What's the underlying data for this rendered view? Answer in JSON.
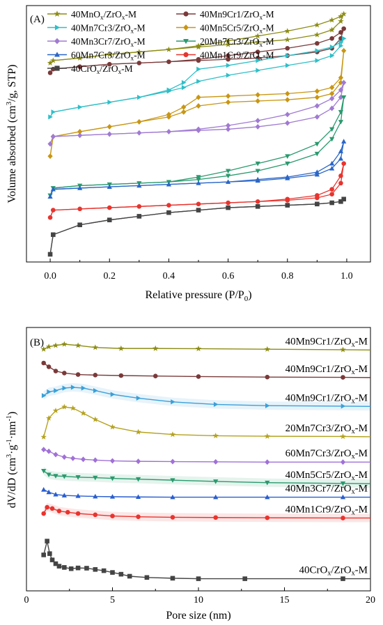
{
  "chart_data": [
    {
      "type": "line",
      "panel_label": "(A)",
      "xlabel": "Relative pressure (P/P",
      "xlabel_sub": "0",
      "xlabel_end": ")",
      "ylabel": "Volume absorbed (cm",
      "ylabel_sup": "3",
      "ylabel_end": "/g, STP)",
      "xlim": [
        -0.08,
        1.08
      ],
      "ylim": [
        0,
        1
      ],
      "x_ticks": [
        "0.0",
        "0.2",
        "0.4",
        "0.6",
        "0.8",
        "1.0"
      ],
      "x_tick_values": [
        0,
        0.2,
        0.4,
        0.6,
        0.8,
        1.0
      ],
      "y_ticks_labeled": false,
      "legend_columns": 2,
      "legend_placement": "top-left",
      "series": [
        {
          "name": "40MnOx/ZrOx-M",
          "legend_text": [
            "40MnO",
            "x",
            "/ZrO",
            "x",
            "-M"
          ],
          "color": "#8c8c14",
          "marker": "star",
          "x": [
            0,
            0.01,
            0.1,
            0.2,
            0.3,
            0.4,
            0.5,
            0.6,
            0.7,
            0.8,
            0.9,
            0.95,
            0.98,
            0.99
          ],
          "y_ads": [
            0.8,
            0.81,
            0.82,
            0.835,
            0.845,
            0.855,
            0.865,
            0.875,
            0.885,
            0.895,
            0.915,
            0.935,
            0.97,
            1.0
          ],
          "y_des": [
            0.8,
            0.81,
            0.82,
            0.835,
            0.845,
            0.855,
            0.87,
            0.89,
            0.91,
            0.93,
            0.955,
            0.975,
            0.99,
            1.0
          ]
        },
        {
          "name": "40Mn9Cr1/ZrOx-M",
          "legend_text": [
            "40Mn9Cr1/ZrO",
            "x",
            "-M"
          ],
          "color": "#7a3a3a",
          "marker": "circle",
          "x": [
            0,
            0.01,
            0.1,
            0.2,
            0.3,
            0.4,
            0.5,
            0.6,
            0.7,
            0.8,
            0.9,
            0.95,
            0.98,
            0.99
          ],
          "y_ads": [
            0.76,
            0.775,
            0.785,
            0.795,
            0.8,
            0.805,
            0.81,
            0.815,
            0.82,
            0.83,
            0.845,
            0.86,
            0.9,
            0.94
          ],
          "y_des": [
            0.76,
            0.775,
            0.785,
            0.795,
            0.8,
            0.805,
            0.815,
            0.83,
            0.845,
            0.86,
            0.88,
            0.9,
            0.925,
            0.94
          ]
        },
        {
          "name": "40Mn7Cr3/ZrOx-M",
          "legend_text": [
            "40Mn7Cr3/ZrO",
            "x",
            "-M"
          ],
          "color": "#2fbfc8",
          "marker": "triangle-right",
          "x": [
            0,
            0.01,
            0.1,
            0.2,
            0.3,
            0.4,
            0.45,
            0.5,
            0.6,
            0.7,
            0.8,
            0.9,
            0.95,
            0.98,
            0.99
          ],
          "y_ads": [
            0.58,
            0.6,
            0.62,
            0.64,
            0.66,
            0.685,
            0.7,
            0.725,
            0.75,
            0.77,
            0.79,
            0.81,
            0.83,
            0.87,
            0.9
          ],
          "y_des": [
            0.58,
            0.6,
            0.62,
            0.64,
            0.66,
            0.69,
            0.72,
            0.775,
            0.79,
            0.81,
            0.83,
            0.85,
            0.865,
            0.885,
            0.9
          ]
        },
        {
          "name": "40Mn5Cr5/ZrOx-M",
          "legend_text": [
            "40Mn5Cr5/ZrO",
            "x",
            "-M"
          ],
          "color": "#c89614",
          "marker": "diamond",
          "x": [
            0,
            0.01,
            0.1,
            0.2,
            0.3,
            0.4,
            0.45,
            0.5,
            0.6,
            0.7,
            0.8,
            0.9,
            0.95,
            0.98,
            0.99
          ],
          "y_ads": [
            0.42,
            0.5,
            0.52,
            0.54,
            0.56,
            0.58,
            0.6,
            0.625,
            0.64,
            0.645,
            0.65,
            0.66,
            0.675,
            0.72,
            0.85
          ],
          "y_des": [
            0.42,
            0.5,
            0.52,
            0.54,
            0.56,
            0.59,
            0.62,
            0.66,
            0.665,
            0.67,
            0.675,
            0.685,
            0.7,
            0.74,
            0.85
          ]
        },
        {
          "name": "40Mn3Cr7/ZrOx-M",
          "legend_text": [
            "40Mn3Cr7/ZrO",
            "x",
            "-M"
          ],
          "color": "#a07ad2",
          "marker": "diamond",
          "x": [
            0,
            0.01,
            0.1,
            0.2,
            0.3,
            0.4,
            0.5,
            0.6,
            0.7,
            0.8,
            0.9,
            0.95,
            0.98,
            0.99
          ],
          "y_ads": [
            0.47,
            0.5,
            0.505,
            0.51,
            0.515,
            0.52,
            0.525,
            0.53,
            0.54,
            0.555,
            0.58,
            0.615,
            0.66,
            0.72
          ],
          "y_des": [
            0.47,
            0.5,
            0.505,
            0.51,
            0.515,
            0.52,
            0.53,
            0.545,
            0.565,
            0.59,
            0.625,
            0.655,
            0.69,
            0.72
          ]
        },
        {
          "name": "20Mn7Cr3/ZrOx-M",
          "legend_text": [
            "20Mn7Cr3/ZrO",
            "x",
            "-M"
          ],
          "color": "#2a9a6e",
          "marker": "triangle-down",
          "x": [
            0,
            0.01,
            0.1,
            0.2,
            0.3,
            0.4,
            0.5,
            0.6,
            0.7,
            0.8,
            0.9,
            0.95,
            0.98,
            0.99
          ],
          "y_ads": [
            0.26,
            0.29,
            0.3,
            0.305,
            0.31,
            0.315,
            0.325,
            0.34,
            0.36,
            0.39,
            0.43,
            0.49,
            0.56,
            0.66
          ],
          "y_des": [
            0.26,
            0.29,
            0.3,
            0.305,
            0.31,
            0.315,
            0.335,
            0.36,
            0.39,
            0.42,
            0.47,
            0.53,
            0.6,
            0.66
          ]
        },
        {
          "name": "60Mn7Cr3/ZrOx-M",
          "legend_text": [
            "60Mn7Cr3/ZrO",
            "x",
            "-M"
          ],
          "color": "#2a66c8",
          "marker": "triangle-up",
          "x": [
            0,
            0.01,
            0.1,
            0.2,
            0.3,
            0.4,
            0.5,
            0.6,
            0.7,
            0.8,
            0.9,
            0.95,
            0.98,
            0.99
          ],
          "y_ads": [
            0.255,
            0.285,
            0.29,
            0.295,
            0.3,
            0.305,
            0.31,
            0.315,
            0.32,
            0.33,
            0.345,
            0.37,
            0.41,
            0.48
          ],
          "y_des": [
            0.255,
            0.285,
            0.29,
            0.295,
            0.3,
            0.305,
            0.31,
            0.315,
            0.325,
            0.335,
            0.355,
            0.39,
            0.44,
            0.48
          ]
        },
        {
          "name": "40Mn1Cr9/ZrOx-M",
          "legend_text": [
            "40Mn1Cr9/ZrO",
            "x",
            "-M"
          ],
          "color": "#e8342e",
          "marker": "circle",
          "x": [
            0,
            0.01,
            0.1,
            0.2,
            0.3,
            0.4,
            0.5,
            0.6,
            0.7,
            0.8,
            0.9,
            0.95,
            0.98,
            0.99
          ],
          "y_ads": [
            0.17,
            0.2,
            0.205,
            0.21,
            0.215,
            0.22,
            0.225,
            0.23,
            0.235,
            0.24,
            0.25,
            0.265,
            0.31,
            0.39
          ],
          "y_des": [
            0.17,
            0.2,
            0.205,
            0.21,
            0.215,
            0.22,
            0.225,
            0.23,
            0.235,
            0.245,
            0.26,
            0.285,
            0.34,
            0.39
          ]
        },
        {
          "name": "40CrOx/ZrOx-M",
          "legend_text": [
            "40CrO",
            "x",
            "/ZrO",
            "x",
            "-M"
          ],
          "color": "#444444",
          "marker": "square",
          "x": [
            0,
            0.01,
            0.1,
            0.2,
            0.3,
            0.4,
            0.5,
            0.6,
            0.7,
            0.8,
            0.9,
            0.95,
            0.98,
            0.99
          ],
          "y_ads": [
            0.02,
            0.1,
            0.14,
            0.16,
            0.175,
            0.19,
            0.2,
            0.21,
            0.215,
            0.22,
            0.225,
            0.23,
            0.235,
            0.245
          ],
          "y_des": [
            0.02,
            0.1,
            0.14,
            0.16,
            0.175,
            0.19,
            0.2,
            0.21,
            0.215,
            0.22,
            0.225,
            0.23,
            0.235,
            0.245
          ]
        }
      ]
    },
    {
      "type": "line",
      "panel_label": "(B)",
      "xlabel": "Pore size (nm)",
      "ylabel": "dV/dD (cm",
      "ylabel_sup": "3",
      "ylabel_mid": "·g",
      "ylabel_sup2": "-1",
      "ylabel_mid2": "·nm",
      "ylabel_sup3": "-1",
      "ylabel_end": ")",
      "xlim": [
        0,
        20
      ],
      "ylim": [
        0,
        1
      ],
      "x_ticks": [
        "0",
        "5",
        "10",
        "15",
        "20"
      ],
      "x_tick_values": [
        0,
        5,
        10,
        15,
        20
      ],
      "y_ticks_labeled": false,
      "series": [
        {
          "name": "40Mn9Cr1/ZrOx-M",
          "label_text": [
            "40Mn9Cr1/ZrO",
            "x",
            "-M"
          ],
          "color": "#8c8c14",
          "marker": "star",
          "shade": false,
          "x": [
            1.0,
            1.3,
            1.7,
            2.2,
            3.0,
            4.0,
            5.5,
            7.5,
            10,
            14,
            18.4,
            20
          ],
          "y": [
            0.955,
            0.965,
            0.97,
            0.975,
            0.97,
            0.962,
            0.958,
            0.958,
            0.957,
            0.955,
            0.953,
            0.952
          ]
        },
        {
          "name": "40Mn9Cr1/ZrOx-M",
          "label_text": [
            "40Mn9Cr1/ZrO",
            "x",
            "-M"
          ],
          "color": "#7a3a3a",
          "marker": "circle",
          "shade": false,
          "x": [
            1.0,
            1.3,
            1.7,
            2.2,
            3.0,
            4.0,
            5.5,
            7.5,
            10,
            14,
            18.4,
            20
          ],
          "y": [
            0.9,
            0.885,
            0.868,
            0.86,
            0.854,
            0.852,
            0.85,
            0.848,
            0.846,
            0.844,
            0.843,
            0.842
          ]
        },
        {
          "name": "40Mn9Cr1/ZrOx-M",
          "label_text": [
            "40Mn9Cr1/ZrO",
            "x",
            "-M"
          ],
          "color": "#3aa0d8",
          "marker": "triangle-right",
          "shade": true,
          "x": [
            1.0,
            1.3,
            1.7,
            2.2,
            2.7,
            3.3,
            4.0,
            5.0,
            6.5,
            8.5,
            11,
            14,
            18.4,
            20
          ],
          "y": [
            0.77,
            0.785,
            0.79,
            0.8,
            0.803,
            0.8,
            0.79,
            0.775,
            0.76,
            0.745,
            0.735,
            0.73,
            0.728,
            0.727
          ]
        },
        {
          "name": "20Mn7Cr3/ZrOx-M",
          "label_text": [
            "20Mn7Cr3/ZrO",
            "x",
            "-M"
          ],
          "color": "#b4a21e",
          "marker": "star",
          "shade": false,
          "x": [
            1.0,
            1.3,
            1.7,
            2.2,
            2.7,
            3.3,
            4.0,
            5.0,
            6.5,
            8.5,
            11,
            14,
            18.4,
            20
          ],
          "y": [
            0.605,
            0.68,
            0.71,
            0.725,
            0.72,
            0.7,
            0.675,
            0.645,
            0.625,
            0.615,
            0.61,
            0.608,
            0.607,
            0.606
          ]
        },
        {
          "name": "60Mn7Cr3/ZrOx-M",
          "label_text": [
            "60Mn7Cr3/ZrO",
            "x",
            "-M"
          ],
          "color": "#a070d8",
          "marker": "diamond",
          "shade": false,
          "x": [
            1.0,
            1.3,
            1.7,
            2.2,
            2.7,
            3.3,
            4.0,
            5.0,
            6.5,
            8.5,
            11,
            14,
            18.4,
            20
          ],
          "y": [
            0.555,
            0.548,
            0.535,
            0.525,
            0.52,
            0.516,
            0.513,
            0.51,
            0.508,
            0.507,
            0.506,
            0.505,
            0.505,
            0.505
          ]
        },
        {
          "name": "40Mn5Cr5/ZrOx-M",
          "label_text": [
            "40Mn5Cr5/ZrO",
            "x",
            "-M"
          ],
          "color": "#2a9a6e",
          "marker": "triangle-down",
          "shade": true,
          "x": [
            1.0,
            1.3,
            1.7,
            2.2,
            3.0,
            4.0,
            5.0,
            6.5,
            8.5,
            11,
            14,
            18.4,
            20
          ],
          "y": [
            0.47,
            0.455,
            0.45,
            0.448,
            0.445,
            0.443,
            0.44,
            0.437,
            0.433,
            0.428,
            0.423,
            0.42,
            0.419
          ]
        },
        {
          "name": "40Mn3Cr7/ZrOx-M",
          "label_text": [
            "40Mn3Cr7/ZrO",
            "x",
            "-M"
          ],
          "color": "#2a5ed0",
          "marker": "triangle-up",
          "shade": false,
          "x": [
            1.0,
            1.3,
            1.7,
            2.2,
            3.0,
            4.0,
            5.0,
            6.5,
            8.5,
            11,
            14,
            18.4,
            20
          ],
          "y": [
            0.395,
            0.385,
            0.376,
            0.372,
            0.37,
            0.368,
            0.367,
            0.366,
            0.365,
            0.365,
            0.365,
            0.365,
            0.365
          ]
        },
        {
          "name": "40Mn1Cr9/ZrOx-M",
          "label_text": [
            "40Mn1Cr9/ZrO",
            "x",
            "-M"
          ],
          "color": "#e8342e",
          "marker": "circle",
          "shade": true,
          "x": [
            1.0,
            1.2,
            1.5,
            1.9,
            2.4,
            3.0,
            4.0,
            5.0,
            6.5,
            8.5,
            11,
            14,
            18.4,
            20
          ],
          "y": [
            0.3,
            0.325,
            0.32,
            0.31,
            0.305,
            0.3,
            0.295,
            0.29,
            0.287,
            0.285,
            0.284,
            0.283,
            0.282,
            0.282
          ]
        },
        {
          "name": "40CrOx/ZrOx-M",
          "label_text": [
            "40CrO",
            "x",
            "/ZrO",
            "x",
            "-M"
          ],
          "color": "#444444",
          "marker": "square",
          "shade": false,
          "x": [
            1.0,
            1.2,
            1.35,
            1.5,
            1.7,
            1.9,
            2.2,
            2.6,
            3.0,
            3.5,
            4.0,
            4.5,
            5.0,
            5.5,
            6.0,
            7.0,
            8.5,
            10,
            12.7,
            18.4,
            20
          ],
          "y": [
            0.135,
            0.19,
            0.14,
            0.115,
            0.1,
            0.09,
            0.085,
            0.08,
            0.083,
            0.082,
            0.077,
            0.072,
            0.065,
            0.058,
            0.05,
            0.045,
            0.042,
            0.04,
            0.04,
            0.04,
            0.04
          ]
        }
      ]
    }
  ]
}
